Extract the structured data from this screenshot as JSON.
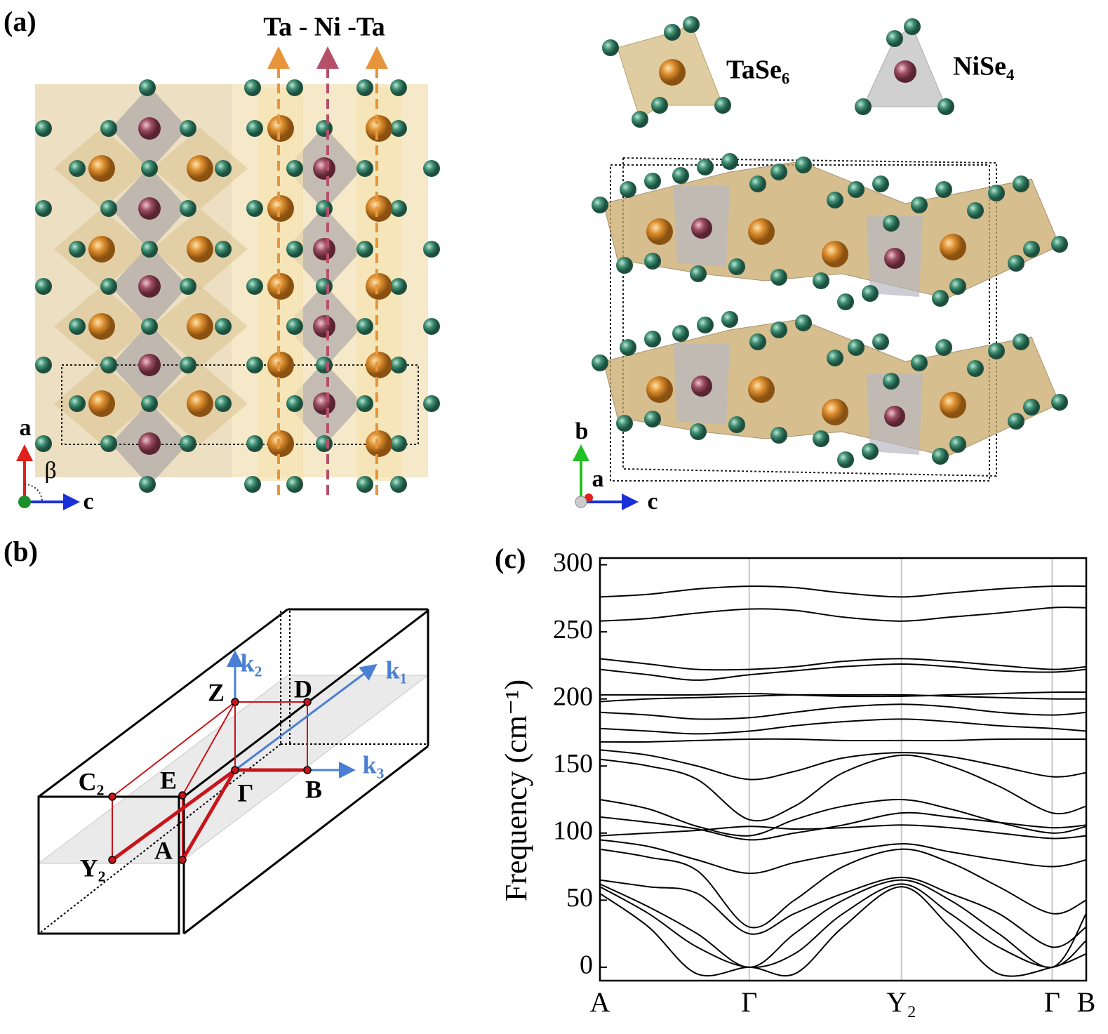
{
  "panel_a": {
    "label": "(a)",
    "chain_label": "Ta - Ni -Ta",
    "legend": [
      "TaSe₆",
      "NiSe₄"
    ],
    "axes_left": [
      "a",
      "β",
      "c"
    ],
    "axes_right": [
      "b",
      "a",
      "c"
    ]
  },
  "panel_b": {
    "label": "(b)",
    "points": [
      "Z",
      "D",
      "C₂",
      "E",
      "Γ",
      "B",
      "Y₂",
      "A"
    ],
    "vectors": [
      "k₁",
      "k₂",
      "k₃"
    ]
  },
  "chart_data": {
    "type": "line",
    "panel_label": "(c)",
    "y_label": "Frequency (cm⁻¹)",
    "x": [
      0,
      0.1,
      0.2,
      0.307,
      0.4,
      0.5,
      0.62,
      0.72,
      0.82,
      0.93,
      1.0
    ],
    "xlim": [
      0,
      1.0
    ],
    "xticks": [
      {
        "value": 0,
        "label": "A"
      },
      {
        "value": 0.307,
        "label": "Γ"
      },
      {
        "value": 0.62,
        "label": "Y₂"
      },
      {
        "value": 0.93,
        "label": "Γ"
      },
      {
        "value": 1.0,
        "label": "B"
      }
    ],
    "ylim": [
      -10,
      305
    ],
    "yticks": [
      0,
      50,
      100,
      150,
      200,
      250,
      300
    ],
    "grid": true,
    "color": "#000000",
    "series": [
      {
        "values": [
          276,
          278,
          282,
          284,
          283,
          279,
          276,
          279,
          282,
          284,
          284
        ]
      },
      {
        "values": [
          258,
          260,
          264,
          267,
          266,
          261,
          258,
          261,
          264,
          268,
          268
        ]
      },
      {
        "values": [
          230,
          226,
          222,
          222,
          224,
          228,
          230,
          228,
          225,
          222,
          224
        ]
      },
      {
        "values": [
          222,
          218,
          214,
          218,
          221,
          224,
          226,
          224,
          221,
          220,
          222
        ]
      },
      {
        "values": [
          203,
          203,
          203,
          204,
          203,
          202,
          202,
          203,
          204,
          205,
          205
        ]
      },
      {
        "values": [
          198,
          200,
          201,
          202,
          203,
          203,
          203,
          202,
          201,
          200,
          200
        ]
      },
      {
        "values": [
          190,
          188,
          185,
          186,
          190,
          194,
          196,
          194,
          190,
          188,
          190
        ]
      },
      {
        "values": [
          178,
          176,
          174,
          176,
          180,
          183,
          185,
          183,
          180,
          178,
          176
        ]
      },
      {
        "values": [
          168,
          168,
          169,
          170,
          170,
          169,
          169,
          169,
          170,
          170,
          170
        ]
      },
      {
        "values": [
          162,
          158,
          150,
          140,
          146,
          156,
          160,
          157,
          150,
          142,
          145
        ]
      },
      {
        "values": [
          155,
          150,
          140,
          110,
          120,
          145,
          158,
          150,
          135,
          115,
          120
        ]
      },
      {
        "values": [
          125,
          118,
          105,
          98,
          110,
          120,
          125,
          118,
          108,
          100,
          105
        ]
      },
      {
        "values": [
          112,
          108,
          103,
          95,
          100,
          106,
          115,
          112,
          108,
          104,
          106
        ]
      },
      {
        "values": [
          98,
          100,
          102,
          105,
          103,
          104,
          106,
          104,
          100,
          96,
          98
        ]
      },
      {
        "values": [
          95,
          90,
          80,
          70,
          78,
          85,
          92,
          86,
          80,
          75,
          80
        ]
      },
      {
        "values": [
          88,
          82,
          72,
          30,
          50,
          75,
          88,
          78,
          60,
          40,
          50
        ]
      },
      {
        "values": [
          65,
          60,
          55,
          25,
          40,
          55,
          67,
          55,
          40,
          15,
          30
        ]
      },
      {
        "values": [
          62,
          45,
          25,
          0,
          25,
          50,
          65,
          50,
          25,
          0,
          40
        ]
      },
      {
        "values": [
          60,
          40,
          15,
          0,
          10,
          40,
          62,
          40,
          15,
          0,
          20
        ]
      },
      {
        "values": [
          55,
          30,
          -5,
          0,
          -5,
          30,
          60,
          30,
          -5,
          0,
          10
        ]
      }
    ]
  }
}
